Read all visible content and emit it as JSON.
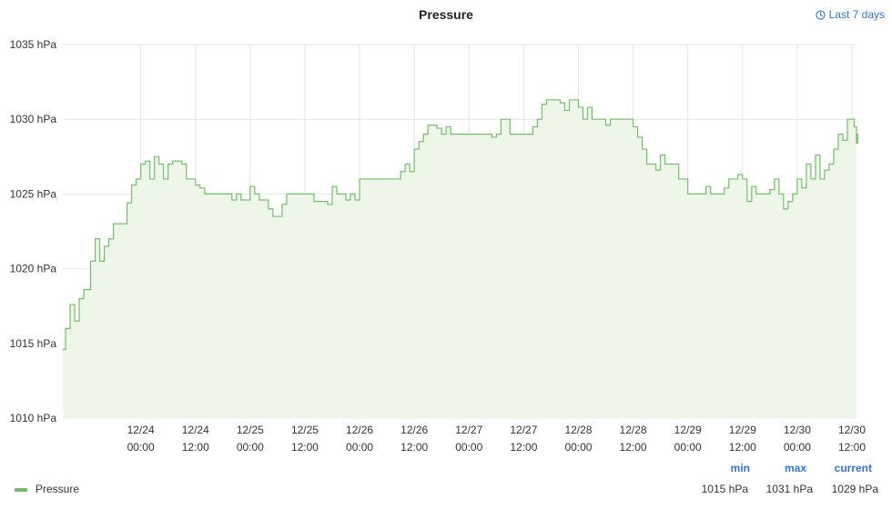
{
  "panel": {
    "title": "Pressure",
    "time_range": "Last 7 days",
    "time_range_icon": "clock-icon",
    "series_color": "#73bf69",
    "fill_color": "#eef6ea"
  },
  "legend": {
    "series_name": "Pressure",
    "headers": {
      "min": "min",
      "max": "max",
      "current": "current"
    },
    "values": {
      "min": "1015 hPa",
      "max": "1031 hPa",
      "current": "1029 hPa"
    }
  },
  "chart_data": {
    "type": "line",
    "interpolation": "step",
    "title": "Pressure",
    "xlabel": "",
    "ylabel": "",
    "unit": "hPa",
    "ylim": [
      1010,
      1035
    ],
    "yticks": [
      1010,
      1015,
      1020,
      1025,
      1030,
      1035
    ],
    "ytick_labels": [
      "1010 hPa",
      "1015 hPa",
      "1020 hPa",
      "1025 hPa",
      "1030 hPa",
      "1035 hPa"
    ],
    "xlim": [
      "2023-12-23T06:54",
      "2023-12-30T13:00"
    ],
    "xticks": [
      "2023-12-24T00:00",
      "2023-12-24T12:00",
      "2023-12-25T00:00",
      "2023-12-25T12:00",
      "2023-12-26T00:00",
      "2023-12-26T12:00",
      "2023-12-27T00:00",
      "2023-12-27T12:00",
      "2023-12-28T00:00",
      "2023-12-28T12:00",
      "2023-12-29T00:00",
      "2023-12-29T12:00",
      "2023-12-30T00:00",
      "2023-12-30T12:00"
    ],
    "xtick_labels": [
      [
        "12/24",
        "00:00"
      ],
      [
        "12/24",
        "12:00"
      ],
      [
        "12/25",
        "00:00"
      ],
      [
        "12/25",
        "12:00"
      ],
      [
        "12/26",
        "00:00"
      ],
      [
        "12/26",
        "12:00"
      ],
      [
        "12/27",
        "00:00"
      ],
      [
        "12/27",
        "12:00"
      ],
      [
        "12/28",
        "00:00"
      ],
      [
        "12/28",
        "12:00"
      ],
      [
        "12/29",
        "00:00"
      ],
      [
        "12/29",
        "12:00"
      ],
      [
        "12/30",
        "00:00"
      ],
      [
        "12/30",
        "12:00"
      ]
    ],
    "grid": true,
    "series": [
      {
        "name": "Pressure",
        "points": [
          [
            "2023-12-23T06:54",
            1014.6
          ],
          [
            "2023-12-23T07:30",
            1016
          ],
          [
            "2023-12-23T08:30",
            1017.6
          ],
          [
            "2023-12-23T09:30",
            1016.5
          ],
          [
            "2023-12-23T10:30",
            1018
          ],
          [
            "2023-12-23T11:30",
            1018.6
          ],
          [
            "2023-12-23T13:00",
            1020.5
          ],
          [
            "2023-12-23T14:00",
            1022
          ],
          [
            "2023-12-23T15:00",
            1020.5
          ],
          [
            "2023-12-23T16:00",
            1021.5
          ],
          [
            "2023-12-23T17:00",
            1022
          ],
          [
            "2023-12-23T18:00",
            1023
          ],
          [
            "2023-12-23T21:00",
            1024.4
          ],
          [
            "2023-12-23T22:00",
            1025.6
          ],
          [
            "2023-12-23T23:00",
            1026
          ],
          [
            "2023-12-24T00:00",
            1027
          ],
          [
            "2023-12-24T01:00",
            1027.2
          ],
          [
            "2023-12-24T02:00",
            1026
          ],
          [
            "2023-12-24T03:00",
            1027.5
          ],
          [
            "2023-12-24T04:00",
            1027
          ],
          [
            "2023-12-24T05:00",
            1026
          ],
          [
            "2023-12-24T06:00",
            1027
          ],
          [
            "2023-12-24T07:00",
            1027.2
          ],
          [
            "2023-12-24T09:00",
            1027
          ],
          [
            "2023-12-24T10:00",
            1026
          ],
          [
            "2023-12-24T12:00",
            1025.6
          ],
          [
            "2023-12-24T13:00",
            1025.4
          ],
          [
            "2023-12-24T14:00",
            1025
          ],
          [
            "2023-12-24T20:00",
            1024.6
          ],
          [
            "2023-12-24T21:00",
            1025
          ],
          [
            "2023-12-24T22:00",
            1024.6
          ],
          [
            "2023-12-25T00:00",
            1025.5
          ],
          [
            "2023-12-25T01:00",
            1025
          ],
          [
            "2023-12-25T02:00",
            1024.6
          ],
          [
            "2023-12-25T04:00",
            1024
          ],
          [
            "2023-12-25T05:00",
            1023.5
          ],
          [
            "2023-12-25T07:00",
            1024.3
          ],
          [
            "2023-12-25T08:00",
            1025
          ],
          [
            "2023-12-25T14:00",
            1024.5
          ],
          [
            "2023-12-25T17:00",
            1024.3
          ],
          [
            "2023-12-25T18:00",
            1025.5
          ],
          [
            "2023-12-25T19:00",
            1025
          ],
          [
            "2023-12-25T21:00",
            1024.6
          ],
          [
            "2023-12-25T22:00",
            1025
          ],
          [
            "2023-12-25T23:00",
            1024.6
          ],
          [
            "2023-12-26T00:00",
            1026
          ],
          [
            "2023-12-26T09:00",
            1026.5
          ],
          [
            "2023-12-26T10:00",
            1027
          ],
          [
            "2023-12-26T11:00",
            1026.5
          ],
          [
            "2023-12-26T12:00",
            1028
          ],
          [
            "2023-12-26T13:00",
            1028.5
          ],
          [
            "2023-12-26T14:00",
            1029
          ],
          [
            "2023-12-26T15:00",
            1029.6
          ],
          [
            "2023-12-26T17:00",
            1029.4
          ],
          [
            "2023-12-26T18:00",
            1029
          ],
          [
            "2023-12-26T19:00",
            1029.5
          ],
          [
            "2023-12-26T20:00",
            1029
          ],
          [
            "2023-12-27T05:00",
            1028.8
          ],
          [
            "2023-12-27T06:00",
            1029
          ],
          [
            "2023-12-27T07:00",
            1030
          ],
          [
            "2023-12-27T09:00",
            1029
          ],
          [
            "2023-12-27T14:00",
            1029.5
          ],
          [
            "2023-12-27T15:00",
            1030
          ],
          [
            "2023-12-27T16:00",
            1031
          ],
          [
            "2023-12-27T17:00",
            1031.3
          ],
          [
            "2023-12-27T20:00",
            1031.1
          ],
          [
            "2023-12-27T21:00",
            1030.6
          ],
          [
            "2023-12-27T22:00",
            1031.3
          ],
          [
            "2023-12-28T00:00",
            1030.8
          ],
          [
            "2023-12-28T01:00",
            1030
          ],
          [
            "2023-12-28T02:00",
            1030.8
          ],
          [
            "2023-12-28T03:00",
            1030
          ],
          [
            "2023-12-28T06:00",
            1029.6
          ],
          [
            "2023-12-28T07:00",
            1030
          ],
          [
            "2023-12-28T12:00",
            1029.5
          ],
          [
            "2023-12-28T13:00",
            1028.8
          ],
          [
            "2023-12-28T14:00",
            1028
          ],
          [
            "2023-12-28T15:00",
            1027
          ],
          [
            "2023-12-28T17:00",
            1026.6
          ],
          [
            "2023-12-28T18:00",
            1027.6
          ],
          [
            "2023-12-28T19:00",
            1027
          ],
          [
            "2023-12-28T22:00",
            1026
          ],
          [
            "2023-12-29T00:00",
            1025
          ],
          [
            "2023-12-29T04:00",
            1025.5
          ],
          [
            "2023-12-29T05:00",
            1025
          ],
          [
            "2023-12-29T08:00",
            1025.4
          ],
          [
            "2023-12-29T09:00",
            1026
          ],
          [
            "2023-12-29T11:00",
            1026.3
          ],
          [
            "2023-12-29T12:00",
            1026
          ],
          [
            "2023-12-29T13:00",
            1024.5
          ],
          [
            "2023-12-29T14:00",
            1025.5
          ],
          [
            "2023-12-29T15:00",
            1025
          ],
          [
            "2023-12-29T18:00",
            1025.3
          ],
          [
            "2023-12-29T19:00",
            1026
          ],
          [
            "2023-12-29T20:00",
            1025
          ],
          [
            "2023-12-29T21:00",
            1024
          ],
          [
            "2023-12-29T22:00",
            1024.5
          ],
          [
            "2023-12-29T23:00",
            1025
          ],
          [
            "2023-12-30T00:00",
            1026
          ],
          [
            "2023-12-30T01:00",
            1025.4
          ],
          [
            "2023-12-30T02:00",
            1027
          ],
          [
            "2023-12-30T03:00",
            1026
          ],
          [
            "2023-12-30T04:00",
            1027.6
          ],
          [
            "2023-12-30T05:00",
            1026
          ],
          [
            "2023-12-30T06:00",
            1026.6
          ],
          [
            "2023-12-30T07:00",
            1027
          ],
          [
            "2023-12-30T08:00",
            1028
          ],
          [
            "2023-12-30T09:00",
            1029
          ],
          [
            "2023-12-30T10:00",
            1028.6
          ],
          [
            "2023-12-30T11:00",
            1030
          ],
          [
            "2023-12-30T12:30",
            1029.5
          ],
          [
            "2023-12-30T13:00",
            1028.4
          ],
          [
            "2023-12-30T13:15",
            1029
          ]
        ]
      }
    ]
  }
}
